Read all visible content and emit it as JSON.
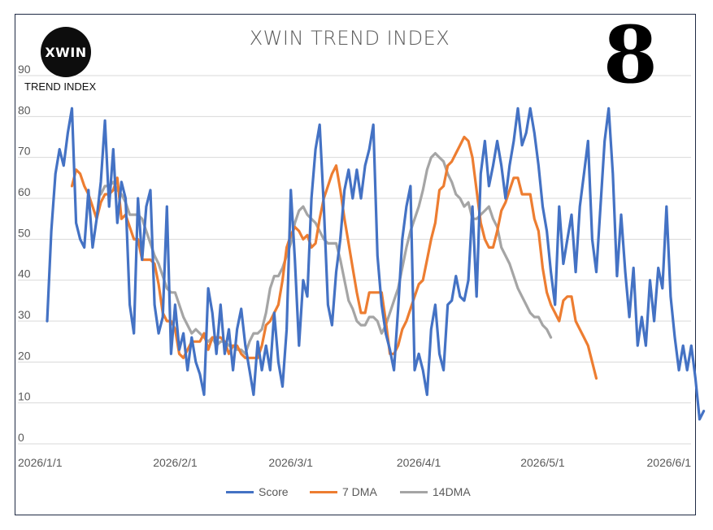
{
  "logo": {
    "text": "XWIN",
    "subtitle": "TREND INDEX"
  },
  "big_number": "8",
  "chart_data": {
    "type": "line",
    "title": "XWIN TREND INDEX",
    "xlabel": "",
    "ylabel": "",
    "ylim": [
      0,
      90
    ],
    "yticks": [
      0,
      10,
      20,
      30,
      40,
      50,
      60,
      70,
      80,
      90
    ],
    "xlim": [
      "2026/1/1",
      "2026/6/2"
    ],
    "xtick_labels": [
      "2026/1/1",
      "2026/2/1",
      "2026/3/1",
      "2026/4/1",
      "2026/5/1",
      "2026/6/1"
    ],
    "grid": "horizontal",
    "legend_position": "bottom",
    "colors": {
      "Score": "#4472c4",
      "7 DMA": "#ed7d31",
      "14DMA": "#a5a5a5"
    },
    "series": [
      {
        "name": "Score",
        "start_date": "2026/1/1",
        "values": [
          30,
          52,
          66,
          72,
          68,
          76,
          82,
          54,
          50,
          48,
          62,
          48,
          55,
          64,
          79,
          58,
          72,
          54,
          64,
          60,
          34,
          27,
          60,
          45,
          58,
          62,
          34,
          27,
          31,
          58,
          22,
          34,
          23,
          27,
          18,
          26,
          20,
          17,
          12,
          38,
          32,
          22,
          34,
          22,
          28,
          18,
          28,
          33,
          24,
          18,
          12,
          25,
          18,
          24,
          18,
          32,
          20,
          14,
          28,
          62,
          45,
          24,
          40,
          36,
          60,
          72,
          78,
          58,
          34,
          29,
          42,
          50,
          62,
          67,
          60,
          67,
          60,
          68,
          72,
          78,
          46,
          34,
          27,
          23,
          18,
          33,
          50,
          58,
          63,
          18,
          22,
          18,
          12,
          28,
          34,
          22,
          18,
          34,
          35,
          41,
          36,
          35,
          40,
          58,
          36,
          66,
          74,
          63,
          68,
          74,
          68,
          60,
          68,
          74,
          82,
          73,
          76,
          82,
          76,
          68,
          58,
          52,
          42,
          34,
          58,
          44,
          50,
          56,
          42,
          58,
          66,
          74,
          50,
          42,
          58,
          74,
          82,
          66,
          41,
          56,
          42,
          31,
          43,
          24,
          31,
          24,
          40,
          30,
          43,
          38,
          58,
          36,
          26,
          18,
          24,
          18,
          24,
          16,
          6,
          8
        ]
      },
      {
        "name": "7 DMA",
        "start_date": "2026/1/7",
        "values": [
          63,
          67,
          66,
          63,
          61,
          58,
          55,
          59,
          61,
          61,
          62,
          65,
          55,
          56,
          53,
          50,
          50,
          45,
          45,
          45,
          44,
          39,
          32,
          30,
          30,
          28,
          22,
          21,
          23,
          25,
          25,
          25,
          27,
          23,
          26,
          26,
          26,
          25,
          22,
          24,
          24,
          22,
          21,
          21,
          21,
          21,
          24,
          29,
          30,
          32,
          34,
          40,
          48,
          51,
          53,
          52,
          50,
          51,
          48,
          49,
          55,
          60,
          63,
          66,
          68,
          62,
          55,
          49,
          43,
          37,
          32,
          32,
          37,
          37,
          37,
          37,
          30,
          22,
          22,
          24,
          28,
          30,
          33,
          36,
          39,
          40,
          45,
          50,
          54,
          62,
          63,
          68,
          69,
          71,
          73,
          75,
          74,
          70,
          62,
          54,
          50,
          48,
          48,
          52,
          57,
          59,
          62,
          65,
          65,
          61,
          61,
          61,
          55,
          52,
          43,
          37,
          34,
          32,
          30,
          35,
          36,
          36,
          30,
          28,
          26,
          24,
          20,
          16
        ]
      },
      {
        "name": "14DMA",
        "start_date": "2026/1/14",
        "values": [
          61,
          63,
          63,
          64,
          62,
          61,
          59,
          56,
          56,
          56,
          55,
          52,
          49,
          46,
          44,
          41,
          38,
          37,
          37,
          34,
          31,
          29,
          27,
          28,
          27,
          26,
          25,
          26,
          24,
          25,
          25,
          24,
          24,
          23,
          23,
          22,
          25,
          27,
          27,
          28,
          32,
          38,
          41,
          41,
          43,
          46,
          49,
          54,
          57,
          58,
          56,
          55,
          54,
          52,
          50,
          49,
          49,
          49,
          45,
          40,
          35,
          33,
          30,
          29,
          29,
          31,
          31,
          30,
          27,
          29,
          32,
          35,
          38,
          43,
          48,
          52,
          55,
          58,
          62,
          67,
          70,
          71,
          70,
          69,
          66,
          64,
          61,
          60,
          58,
          59,
          55,
          55,
          56,
          57,
          58,
          55,
          53,
          48,
          46,
          44,
          41,
          38,
          36,
          34,
          32,
          31,
          31,
          29,
          28,
          26
        ]
      }
    ]
  }
}
